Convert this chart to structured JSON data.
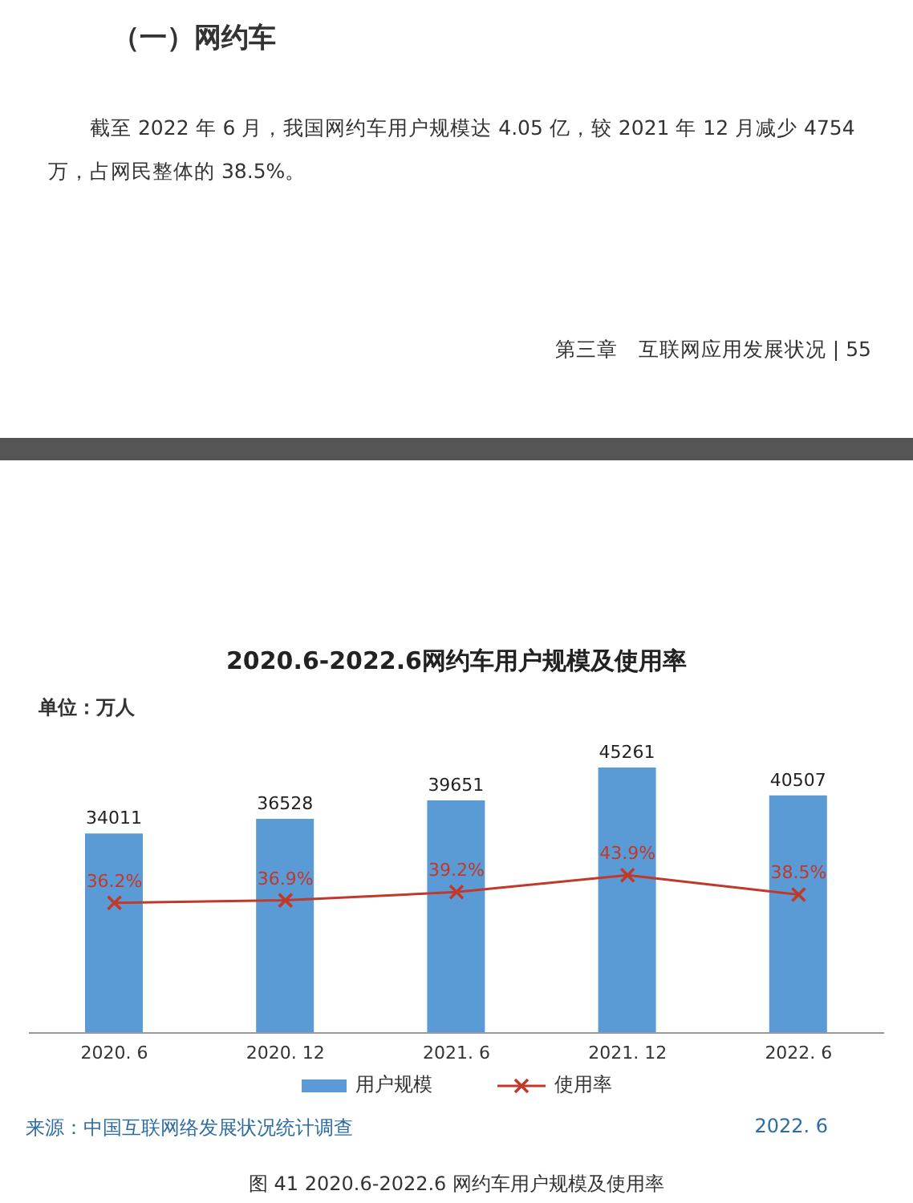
{
  "chart_data": {
    "type": "bar",
    "title": "2020.6-2022.6网约车用户规模及使用率",
    "ylabel": "单位：万人",
    "categories": [
      "2020. 6",
      "2020. 12",
      "2021. 6",
      "2021. 12",
      "2022. 6"
    ],
    "series": [
      {
        "name": "用户规模",
        "color": "#5b9bd5",
        "values": [
          34011,
          36528,
          39651,
          45261,
          40507
        ],
        "value_labels": [
          "34011",
          "36528",
          "39651",
          "45261",
          "40507"
        ]
      },
      {
        "name": "使用率",
        "type": "line",
        "axis": "y2",
        "color": "#c0392b",
        "marker": "cross",
        "values": [
          36.2,
          36.9,
          39.2,
          43.9,
          38.5
        ],
        "value_labels": [
          "36.2%",
          "36.9%",
          "39.2%",
          "43.9%",
          "38.5%"
        ]
      }
    ],
    "tick_labels": "x",
    "legend": "bottom",
    "annotations": [
      "（一）网约车",
      "截至 2022 年 6 月，我国网约车用户规模达 4.05 亿，较 2021 年 12 月减少 4754 万，占网民整体的 38.5%。",
      "第三章　互联网应用发展状况 | 55",
      "来源：中国互联网络发展状况统计调查",
      "2022. 6",
      "图 41 2020.6-2022.6 网约车用户规模及使用率"
    ]
  }
}
